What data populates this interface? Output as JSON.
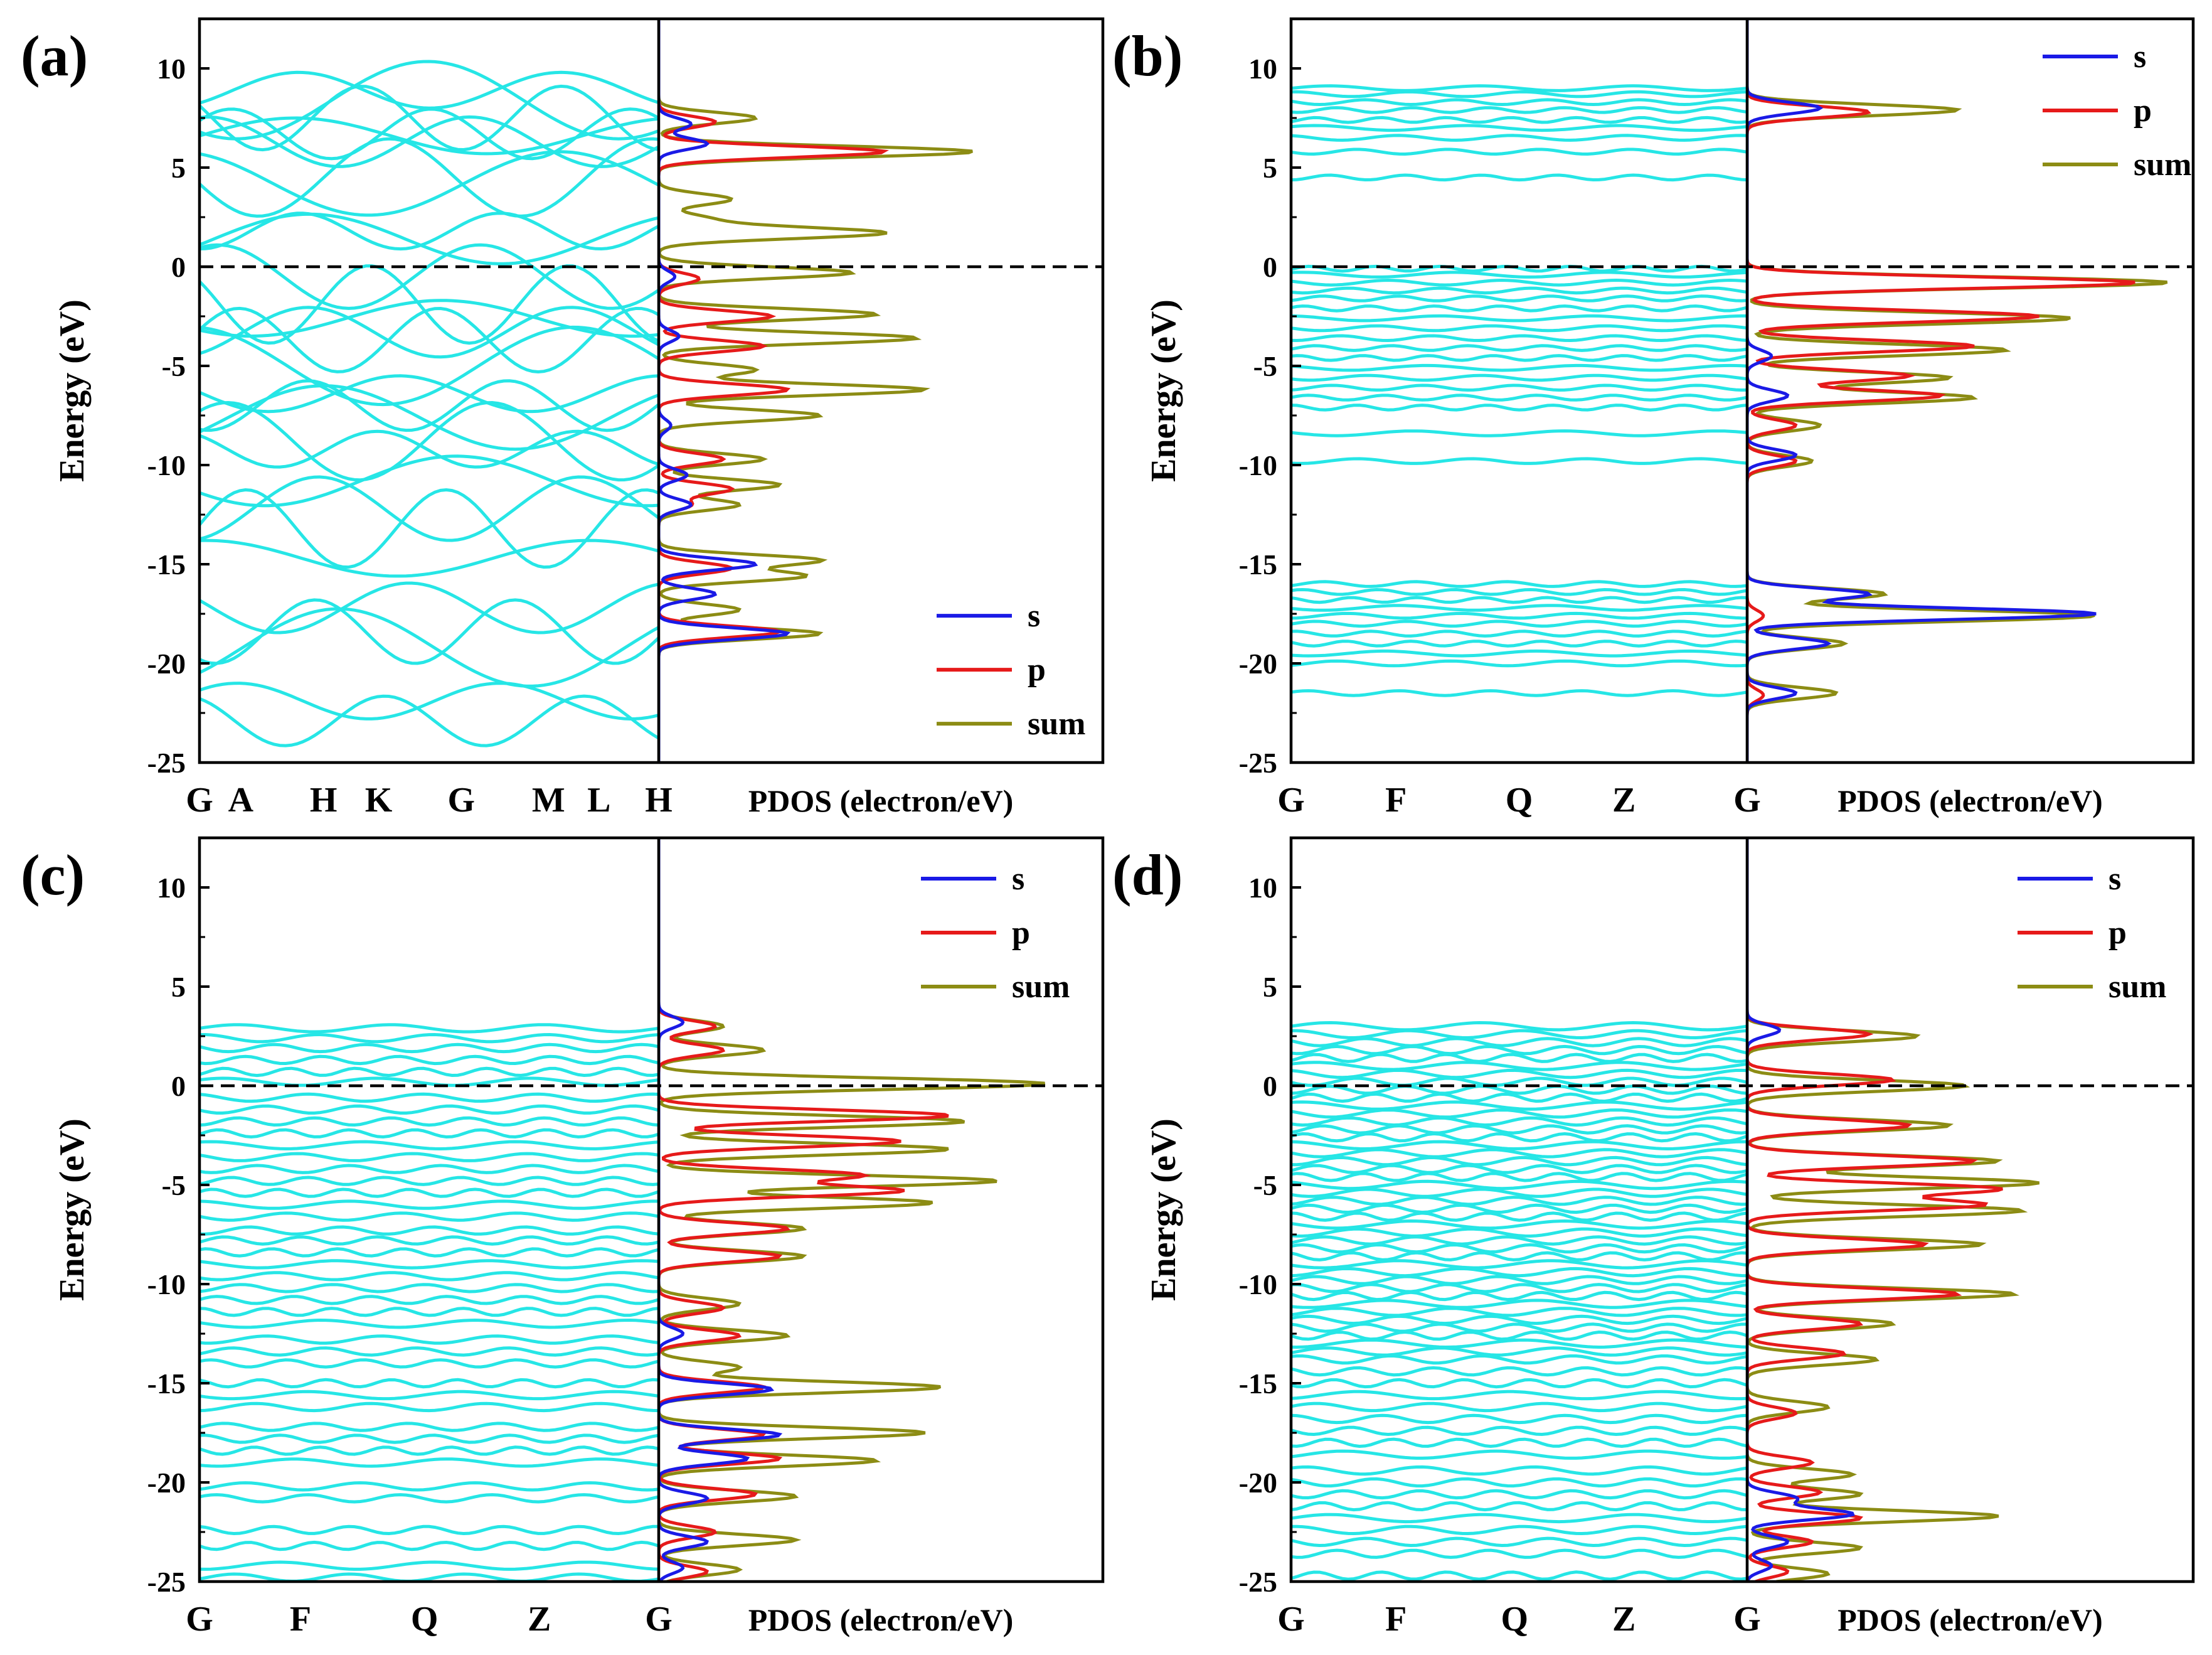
{
  "figure": {
    "colors": {
      "band": "#26e6e6",
      "s": "#1a1ae6",
      "p": "#e61a1a",
      "sum": "#8c8c14",
      "axis": "#000000",
      "fermi": "#000000"
    }
  },
  "chart_data": [
    {
      "panel": "(a)",
      "type": "line",
      "ylabel": "Energy (eV)",
      "ylim": [
        -25,
        12.5
      ],
      "yticks": [
        "10",
        "5",
        "0",
        "-5",
        "-10",
        "-15",
        "-20",
        "-25"
      ],
      "kpoints": [
        "G",
        "A",
        "H",
        "K",
        "G",
        "M",
        "L",
        "H"
      ],
      "kpoint_fractions": [
        0,
        0.09,
        0.27,
        0.39,
        0.57,
        0.76,
        0.87,
        1.0
      ],
      "pdos_label": "PDOS (electron/eV)",
      "legend": [
        "s",
        "p",
        "sum"
      ],
      "legend_position": "bottom-right",
      "fermi_level": 0,
      "band_energies": [
        6.6,
        6.3,
        7.5,
        8.4,
        8.9,
        6.7,
        4.2,
        4.5,
        1.8,
        1.4,
        -0.5,
        -1.9,
        -2.6,
        -3.3,
        -3.7,
        -5.0,
        -6.4,
        -7.0,
        -7.6,
        -8.8,
        -9.2,
        -10.8,
        -12.2,
        -13.2,
        -14.7,
        -17.2,
        -18.4,
        -19.2,
        -21.9,
        -22.9
      ],
      "pdos_series": [
        {
          "name": "s",
          "peaks": [
            [
              7.2,
              0.4
            ],
            [
              6.2,
              0.6
            ],
            [
              -0.5,
              0.2
            ],
            [
              -3.5,
              0.25
            ],
            [
              -8.0,
              0.15
            ],
            [
              -10.5,
              0.35
            ],
            [
              -12.0,
              0.4
            ],
            [
              -15.0,
              1.2
            ],
            [
              -16.5,
              0.7
            ],
            [
              -18.5,
              1.6
            ]
          ]
        },
        {
          "name": "p",
          "peaks": [
            [
              7.3,
              0.7
            ],
            [
              5.8,
              2.8
            ],
            [
              -0.6,
              0.5
            ],
            [
              -2.5,
              1.4
            ],
            [
              -4.0,
              1.3
            ],
            [
              -6.2,
              1.6
            ],
            [
              -9.7,
              0.8
            ],
            [
              -11.2,
              0.9
            ],
            [
              -12.0,
              0.4
            ],
            [
              -15.2,
              0.9
            ],
            [
              -18.4,
              1.5
            ]
          ]
        },
        {
          "name": "sum",
          "peaks": [
            [
              7.5,
              1.2
            ],
            [
              5.8,
              3.9
            ],
            [
              3.4,
              0.9
            ],
            [
              2.4,
              0.6
            ],
            [
              1.7,
              2.8
            ],
            [
              -0.3,
              2.4
            ],
            [
              -2.4,
              2.7
            ],
            [
              -3.6,
              3.2
            ],
            [
              -5.2,
              1.2
            ],
            [
              -6.2,
              3.3
            ],
            [
              -7.5,
              2.0
            ],
            [
              -9.7,
              1.3
            ],
            [
              -11.0,
              1.5
            ],
            [
              -12.0,
              1.0
            ],
            [
              -14.8,
              2.0
            ],
            [
              -15.6,
              1.8
            ],
            [
              -17.3,
              1.0
            ],
            [
              -18.5,
              2.0
            ]
          ]
        }
      ]
    },
    {
      "panel": "(b)",
      "type": "line",
      "ylabel": "Energy (eV)",
      "ylim": [
        -25,
        12.5
      ],
      "yticks": [
        "10",
        "5",
        "0",
        "-5",
        "-10",
        "-15",
        "-20",
        "-25"
      ],
      "kpoints": [
        "G",
        "F",
        "Q",
        "Z",
        "G"
      ],
      "kpoint_fractions": [
        0,
        0.23,
        0.5,
        0.73,
        1.0
      ],
      "pdos_label": "PDOS (electron/eV)",
      "legend": [
        "s",
        "p",
        "sum"
      ],
      "legend_position": "top-right",
      "fermi_level": 0,
      "band_energies": [
        9.0,
        8.7,
        8.3,
        7.9,
        7.4,
        7.0,
        6.5,
        5.8,
        4.5,
        -0.1,
        -0.4,
        -0.8,
        -1.2,
        -1.6,
        -2.1,
        -2.6,
        -3.1,
        -3.6,
        -4.1,
        -4.6,
        -5.1,
        -5.6,
        -6.1,
        -6.6,
        -7.1,
        -8.4,
        -9.8,
        -16.0,
        -16.4,
        -16.8,
        -17.2,
        -17.6,
        -18.0,
        -18.5,
        -19.0,
        -19.5,
        -20.0,
        -21.5
      ],
      "pdos_series": [
        {
          "name": "s",
          "peaks": [
            [
              8.0,
              0.9
            ],
            [
              -4.5,
              0.3
            ],
            [
              -6.5,
              0.5
            ],
            [
              -9.5,
              0.6
            ],
            [
              -16.5,
              1.5
            ],
            [
              -17.5,
              4.3
            ],
            [
              -19.0,
              1.0
            ],
            [
              -21.5,
              0.6
            ]
          ]
        },
        {
          "name": "p",
          "peaks": [
            [
              7.8,
              1.5
            ],
            [
              -0.8,
              4.8
            ],
            [
              -2.5,
              3.6
            ],
            [
              -4.0,
              2.8
            ],
            [
              -5.5,
              2.0
            ],
            [
              -6.5,
              2.4
            ],
            [
              -8.0,
              0.6
            ],
            [
              -9.8,
              0.6
            ],
            [
              -17.6,
              0.2
            ],
            [
              -21.6,
              0.2
            ]
          ]
        },
        {
          "name": "sum",
          "peaks": [
            [
              7.9,
              2.6
            ],
            [
              -0.8,
              5.2
            ],
            [
              -2.6,
              4.0
            ],
            [
              -4.2,
              3.2
            ],
            [
              -5.6,
              2.5
            ],
            [
              -6.6,
              2.8
            ],
            [
              -8.0,
              0.9
            ],
            [
              -9.8,
              0.8
            ],
            [
              -16.5,
              1.7
            ],
            [
              -17.6,
              4.3
            ],
            [
              -19.0,
              1.2
            ],
            [
              -21.5,
              1.1
            ]
          ]
        }
      ]
    },
    {
      "panel": "(c)",
      "type": "line",
      "ylabel": "Energy (eV)",
      "ylim": [
        -25,
        12.5
      ],
      "yticks": [
        "10",
        "5",
        "0",
        "-5",
        "-10",
        "-15",
        "-20",
        "-25"
      ],
      "kpoints": [
        "G",
        "F",
        "Q",
        "Z",
        "G"
      ],
      "kpoint_fractions": [
        0,
        0.22,
        0.49,
        0.74,
        1.0
      ],
      "pdos_label": "PDOS (electron/eV)",
      "legend": [
        "s",
        "p",
        "sum"
      ],
      "legend_position": "top-right",
      "fermi_level": 0,
      "band_energies": [
        2.9,
        2.4,
        1.9,
        1.3,
        0.7,
        0.2,
        -0.6,
        -1.2,
        -1.8,
        -2.4,
        -3.0,
        -3.6,
        -4.2,
        -4.8,
        -5.4,
        -6.0,
        -6.6,
        -7.3,
        -7.8,
        -8.4,
        -9.0,
        -9.6,
        -10.2,
        -10.8,
        -11.4,
        -12.0,
        -12.8,
        -13.4,
        -14.0,
        -15.0,
        -15.6,
        -16.2,
        -17.2,
        -17.8,
        -18.4,
        -19.0,
        -20.2,
        -20.8,
        -22.4,
        -23.2,
        -24.2,
        -24.8
      ],
      "pdos_series": [
        {
          "name": "s",
          "peaks": [
            [
              3.2,
              0.3
            ],
            [
              -12.5,
              0.3
            ],
            [
              -15.3,
              1.4
            ],
            [
              -17.6,
              1.5
            ],
            [
              -18.8,
              1.1
            ],
            [
              -20.8,
              0.6
            ],
            [
              -23.0,
              0.6
            ],
            [
              -24.3,
              0.3
            ]
          ]
        },
        {
          "name": "p",
          "peaks": [
            [
              3.0,
              0.7
            ],
            [
              1.8,
              0.8
            ],
            [
              -1.5,
              3.6
            ],
            [
              -2.8,
              3.0
            ],
            [
              -4.5,
              2.5
            ],
            [
              -5.3,
              3.0
            ],
            [
              -7.2,
              1.6
            ],
            [
              -8.6,
              1.5
            ],
            [
              -11.2,
              0.8
            ],
            [
              -12.6,
              1.0
            ],
            [
              -15.2,
              1.3
            ],
            [
              -17.6,
              1.3
            ],
            [
              -18.8,
              1.5
            ],
            [
              -20.6,
              1.2
            ],
            [
              -22.5,
              0.7
            ],
            [
              -24.5,
              0.6
            ]
          ]
        },
        {
          "name": "sum",
          "peaks": [
            [
              3.0,
              0.8
            ],
            [
              1.8,
              1.3
            ],
            [
              0.1,
              4.8
            ],
            [
              -1.8,
              3.8
            ],
            [
              -3.2,
              3.6
            ],
            [
              -4.8,
              4.2
            ],
            [
              -5.9,
              3.4
            ],
            [
              -7.2,
              1.8
            ],
            [
              -8.6,
              1.8
            ],
            [
              -11.0,
              1.0
            ],
            [
              -12.6,
              1.6
            ],
            [
              -14.2,
              1.0
            ],
            [
              -15.2,
              3.5
            ],
            [
              -17.5,
              3.3
            ],
            [
              -18.9,
              2.7
            ],
            [
              -20.7,
              1.7
            ],
            [
              -22.9,
              1.7
            ],
            [
              -24.4,
              1.0
            ]
          ]
        }
      ]
    },
    {
      "panel": "(d)",
      "type": "line",
      "ylabel": "Energy (eV)",
      "ylim": [
        -25,
        12.5
      ],
      "yticks": [
        "10",
        "5",
        "0",
        "-5",
        "-10",
        "-15",
        "-20",
        "-25"
      ],
      "kpoints": [
        "G",
        "F",
        "Q",
        "Z",
        "G"
      ],
      "kpoint_fractions": [
        0,
        0.23,
        0.49,
        0.73,
        1.0
      ],
      "pdos_label": "PDOS (electron/eV)",
      "legend": [
        "s",
        "p",
        "sum"
      ],
      "legend_position": "top-right",
      "fermi_level": 0,
      "band_energies": [
        3.0,
        2.6,
        2.2,
        1.8,
        1.4,
        1.0,
        0.6,
        0.2,
        -0.2,
        -0.6,
        -1.0,
        -1.4,
        -1.8,
        -2.2,
        -2.6,
        -3.0,
        -3.4,
        -3.8,
        -4.2,
        -4.6,
        -5.0,
        -5.4,
        -5.8,
        -6.2,
        -6.6,
        -7.0,
        -7.4,
        -7.8,
        -8.2,
        -8.6,
        -9.0,
        -9.4,
        -9.8,
        -10.2,
        -10.6,
        -11.0,
        -11.4,
        -11.8,
        -12.2,
        -12.6,
        -13.0,
        -13.4,
        -13.8,
        -14.4,
        -15.0,
        -15.6,
        -16.2,
        -16.8,
        -17.4,
        -18.0,
        -18.6,
        -19.4,
        -20.0,
        -20.6,
        -21.2,
        -21.8,
        -22.4,
        -23.0,
        -23.6,
        -24.7
      ],
      "pdos_series": [
        {
          "name": "s",
          "peaks": [
            [
              2.8,
              0.4
            ],
            [
              -20.8,
              0.6
            ],
            [
              -21.6,
              1.3
            ],
            [
              -23.0,
              0.5
            ],
            [
              -24.2,
              0.3
            ]
          ]
        },
        {
          "name": "p",
          "peaks": [
            [
              2.6,
              1.5
            ],
            [
              0.3,
              1.8
            ],
            [
              -2.0,
              2.0
            ],
            [
              -3.8,
              2.8
            ],
            [
              -5.2,
              3.1
            ],
            [
              -6.0,
              2.9
            ],
            [
              -8.0,
              2.2
            ],
            [
              -10.5,
              2.6
            ],
            [
              -12.0,
              1.4
            ],
            [
              -13.5,
              1.2
            ],
            [
              -16.5,
              0.6
            ],
            [
              -19.0,
              0.8
            ],
            [
              -20.5,
              0.9
            ],
            [
              -21.8,
              1.4
            ],
            [
              -23.0,
              0.8
            ],
            [
              -24.5,
              0.5
            ]
          ]
        },
        {
          "name": "sum",
          "peaks": [
            [
              2.5,
              2.1
            ],
            [
              0.0,
              2.7
            ],
            [
              -2.0,
              2.5
            ],
            [
              -3.8,
              3.1
            ],
            [
              -4.9,
              3.6
            ],
            [
              -6.3,
              3.4
            ],
            [
              -8.0,
              2.9
            ],
            [
              -10.5,
              3.3
            ],
            [
              -12.0,
              1.8
            ],
            [
              -13.8,
              1.6
            ],
            [
              -16.2,
              1.0
            ],
            [
              -19.6,
              1.3
            ],
            [
              -20.6,
              1.4
            ],
            [
              -21.7,
              3.1
            ],
            [
              -23.3,
              1.4
            ],
            [
              -24.6,
              1.0
            ]
          ]
        }
      ]
    }
  ]
}
